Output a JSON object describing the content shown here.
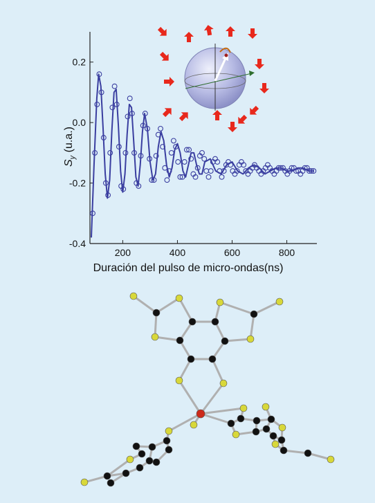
{
  "figure": {
    "background": "#ddeef8",
    "data_color": "#3a3ea0",
    "arrow_color": "#e8281c",
    "atom_colors": {
      "sulfur": "#d8d83a",
      "carbon": "#111111",
      "metal": "#cc2a1a",
      "bond": "#b0b0b0"
    }
  },
  "chart_data": {
    "type": "scatter",
    "title": "",
    "xlabel": "Duración del pulso de micro-ondas(ns)",
    "ylabel_main": "S",
    "ylabel_sub": "y",
    "ylabel_unit": " (u.a.)",
    "xlim": [
      80,
      910
    ],
    "ylim": [
      -0.4,
      0.3
    ],
    "xticks": [
      200,
      400,
      600,
      800
    ],
    "xtick_labels": [
      "200",
      "400",
      "600",
      "800"
    ],
    "yticks": [
      0.2,
      0.0,
      -0.2,
      -0.4
    ],
    "ytick_labels": [
      "0.2",
      "0.0",
      "-0.2",
      "-0.4"
    ],
    "grid": false,
    "series": [
      {
        "kind": "markers",
        "marker": "open-circle",
        "x": [
          90,
          98,
          106,
          114,
          122,
          130,
          138,
          146,
          154,
          162,
          170,
          178,
          186,
          194,
          202,
          210,
          218,
          226,
          234,
          242,
          250,
          258,
          266,
          274,
          282,
          290,
          298,
          306,
          314,
          322,
          330,
          338,
          346,
          354,
          362,
          370,
          378,
          386,
          394,
          402,
          410,
          418,
          426,
          434,
          442,
          450,
          458,
          466,
          474,
          482,
          490,
          498,
          506,
          514,
          522,
          530,
          538,
          546,
          554,
          562,
          570,
          578,
          586,
          594,
          602,
          610,
          618,
          626,
          634,
          642,
          650,
          658,
          666,
          674,
          682,
          690,
          698,
          706,
          714,
          722,
          730,
          738,
          746,
          754,
          762,
          770,
          778,
          786,
          794,
          802,
          810,
          818,
          826,
          834,
          842,
          850,
          858,
          866,
          874,
          882,
          890,
          898
        ],
        "y": [
          -0.3,
          -0.1,
          0.06,
          0.16,
          0.1,
          -0.05,
          -0.2,
          -0.24,
          -0.1,
          0.05,
          0.12,
          0.06,
          -0.08,
          -0.21,
          -0.22,
          -0.1,
          0.02,
          0.08,
          0.03,
          -0.1,
          -0.2,
          -0.21,
          -0.11,
          -0.01,
          0.03,
          -0.02,
          -0.12,
          -0.19,
          -0.19,
          -0.11,
          -0.04,
          -0.02,
          -0.08,
          -0.15,
          -0.19,
          -0.16,
          -0.1,
          -0.06,
          -0.08,
          -0.13,
          -0.18,
          -0.18,
          -0.13,
          -0.09,
          -0.09,
          -0.12,
          -0.17,
          -0.18,
          -0.15,
          -0.11,
          -0.1,
          -0.12,
          -0.16,
          -0.18,
          -0.16,
          -0.13,
          -0.12,
          -0.13,
          -0.16,
          -0.18,
          -0.16,
          -0.14,
          -0.13,
          -0.14,
          -0.16,
          -0.17,
          -0.16,
          -0.14,
          -0.13,
          -0.14,
          -0.16,
          -0.17,
          -0.16,
          -0.15,
          -0.14,
          -0.15,
          -0.16,
          -0.17,
          -0.16,
          -0.15,
          -0.14,
          -0.15,
          -0.16,
          -0.17,
          -0.16,
          -0.15,
          -0.15,
          -0.15,
          -0.16,
          -0.17,
          -0.16,
          -0.15,
          -0.15,
          -0.16,
          -0.16,
          -0.17,
          -0.16,
          -0.15,
          -0.15,
          -0.16,
          -0.16,
          -0.16
        ]
      },
      {
        "kind": "fit-line",
        "x": [
          85,
          95,
          105,
          112,
          120,
          128,
          136,
          144,
          152,
          160,
          168,
          176,
          184,
          192,
          200,
          208,
          216,
          224,
          232,
          240,
          248,
          256,
          264,
          272,
          280,
          290,
          300,
          310,
          320,
          330,
          340,
          350,
          360,
          370,
          380,
          390,
          400,
          410,
          420,
          430,
          440,
          450,
          460,
          470,
          480,
          490,
          500,
          520,
          540,
          560,
          580,
          600,
          620,
          640,
          660,
          680,
          700,
          720,
          740,
          760,
          780,
          800,
          820,
          840,
          860,
          880,
          900
        ],
        "y": [
          -0.38,
          -0.14,
          0.08,
          0.16,
          0.12,
          -0.02,
          -0.17,
          -0.25,
          -0.19,
          -0.03,
          0.1,
          0.11,
          -0.01,
          -0.16,
          -0.23,
          -0.17,
          -0.04,
          0.06,
          0.05,
          -0.06,
          -0.18,
          -0.21,
          -0.14,
          -0.03,
          0.03,
          -0.02,
          -0.13,
          -0.19,
          -0.17,
          -0.08,
          -0.03,
          -0.06,
          -0.14,
          -0.18,
          -0.15,
          -0.09,
          -0.07,
          -0.1,
          -0.16,
          -0.18,
          -0.14,
          -0.1,
          -0.1,
          -0.14,
          -0.17,
          -0.17,
          -0.13,
          -0.12,
          -0.16,
          -0.17,
          -0.14,
          -0.13,
          -0.16,
          -0.17,
          -0.15,
          -0.14,
          -0.15,
          -0.17,
          -0.16,
          -0.15,
          -0.15,
          -0.16,
          -0.16,
          -0.15,
          -0.15,
          -0.16,
          -0.16
        ]
      }
    ]
  }
}
